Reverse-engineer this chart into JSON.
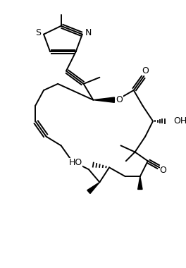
{
  "bg_color": "#ffffff",
  "lw": 1.4,
  "figsize": [
    2.64,
    3.8
  ],
  "dpi": 100,
  "xlim": [
    0,
    264
  ],
  "ylim": [
    0,
    380
  ]
}
